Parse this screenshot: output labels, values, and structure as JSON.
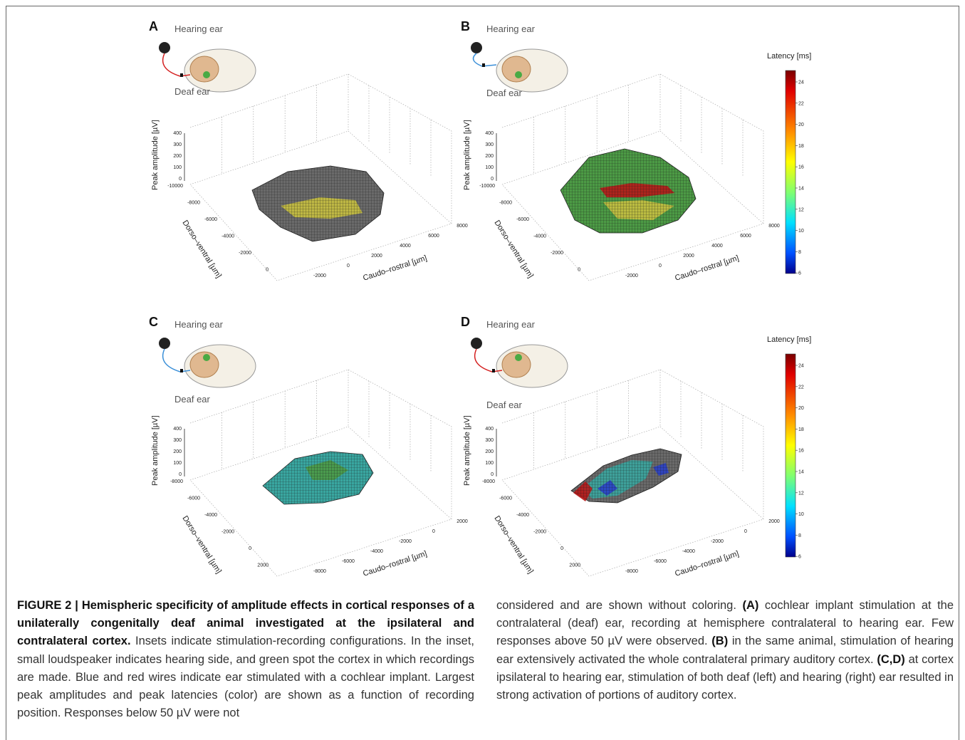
{
  "figure": {
    "panels": [
      {
        "label": "A",
        "hearing_ear": "Hearing ear",
        "deaf_ear": "Deaf ear",
        "z_axis_label": "Peak amplitude [µV]",
        "z_ticks": [
          "400",
          "300",
          "200",
          "100",
          "0"
        ],
        "dv_axis_label": "Dorso–ventral [µm]",
        "dv_ticks": [
          "-10000",
          "-8000",
          "-6000",
          "-4000",
          "-2000",
          "0"
        ],
        "cr_axis_label": "Caudo–rostral [µm]",
        "cr_ticks": [
          "-2000",
          "0",
          "2000",
          "4000",
          "6000",
          "8000"
        ],
        "wire": "red",
        "has_colorbar": false
      },
      {
        "label": "B",
        "hearing_ear": "Hearing ear",
        "deaf_ear": "Deaf ear",
        "z_axis_label": "Peak amplitude [µV]",
        "z_ticks": [
          "400",
          "300",
          "200",
          "100",
          "0"
        ],
        "dv_axis_label": "Dorso–ventral [µm]",
        "dv_ticks": [
          "-10000",
          "-8000",
          "-6000",
          "-4000",
          "-2000",
          "0"
        ],
        "cr_axis_label": "Caudo–rostral [µm]",
        "cr_ticks": [
          "-2000",
          "0",
          "2000",
          "4000",
          "6000",
          "8000"
        ],
        "wire": "blue",
        "has_colorbar": true
      },
      {
        "label": "C",
        "hearing_ear": "Hearing ear",
        "deaf_ear": "Deaf ear",
        "z_axis_label": "Peak amplitude [µV]",
        "z_ticks": [
          "400",
          "300",
          "200",
          "100",
          "0"
        ],
        "dv_axis_label": "Dorso–ventral [µm]",
        "dv_ticks": [
          "-8000",
          "-6000",
          "-4000",
          "-2000",
          "0",
          "2000"
        ],
        "cr_axis_label": "Caudo–rostral [µm]",
        "cr_ticks": [
          "-8000",
          "-6000",
          "-4000",
          "-2000",
          "0",
          "2000"
        ],
        "wire": "blue",
        "has_colorbar": false
      },
      {
        "label": "D",
        "hearing_ear": "Hearing ear",
        "deaf_ear": "Deaf ear",
        "z_axis_label": "Peak amplitude [µV]",
        "z_ticks": [
          "400",
          "300",
          "200",
          "100",
          "0"
        ],
        "dv_axis_label": "Dorso–ventral [µm]",
        "dv_ticks": [
          "-8000",
          "-6000",
          "-4000",
          "-2000",
          "0",
          "2000"
        ],
        "cr_axis_label": "Caudo–rostral [µm]",
        "cr_ticks": [
          "-8000",
          "-6000",
          "-4000",
          "-2000",
          "0",
          "2000"
        ],
        "wire": "red",
        "has_colorbar": true
      }
    ],
    "colorbar": {
      "title": "Latency [ms]",
      "ticks": [
        "24",
        "22",
        "20",
        "18",
        "16",
        "14",
        "12",
        "10",
        "8",
        "6"
      ],
      "colors": [
        "#8b0000",
        "#ff0000",
        "#ff8c00",
        "#ffff00",
        "#7fff7f",
        "#00ffff",
        "#0080ff",
        "#00008b"
      ]
    },
    "wire_colors": {
      "red": "#d42020",
      "blue": "#3a8fd8"
    },
    "surface_colors": {
      "gray": "#6a6a6a",
      "yellow": "#c8c040",
      "green": "#4c9a45",
      "teal": "#3aa6a0",
      "red": "#b81818",
      "blue": "#2a40c8"
    }
  },
  "caption": {
    "heading": "FIGURE 2 | Hemispheric specificity of amplitude effects in cortical responses of a unilaterally congenitally deaf animal investigated at the ipsilateral and contralateral cortex.",
    "left_body": "Insets indicate stimulation-recording configurations. In the inset, small loudspeaker indicates hearing side, and green spot the cortex in which recordings are made. Blue and red wires indicate ear stimulated with a cochlear implant. Largest peak amplitudes and peak latencies (color) are shown as a function of recording position. Responses below 50 µV were not",
    "right_pre": "considered and are shown without coloring.",
    "a_label": "(A)",
    "a_text": "cochlear implant stimulation at the contralateral (deaf) ear, recording at hemisphere contralateral to hearing ear. Few responses above 50 µV were observed.",
    "b_label": "(B)",
    "b_text": "in the same animal, stimulation of hearing ear extensively activated the whole contralateral primary auditory cortex.",
    "cd_label": "(C,D)",
    "cd_text": "at cortex ipsilateral to hearing ear, stimulation of both deaf (left) and hearing (right) ear resulted in strong activation of portions of auditory cortex."
  }
}
